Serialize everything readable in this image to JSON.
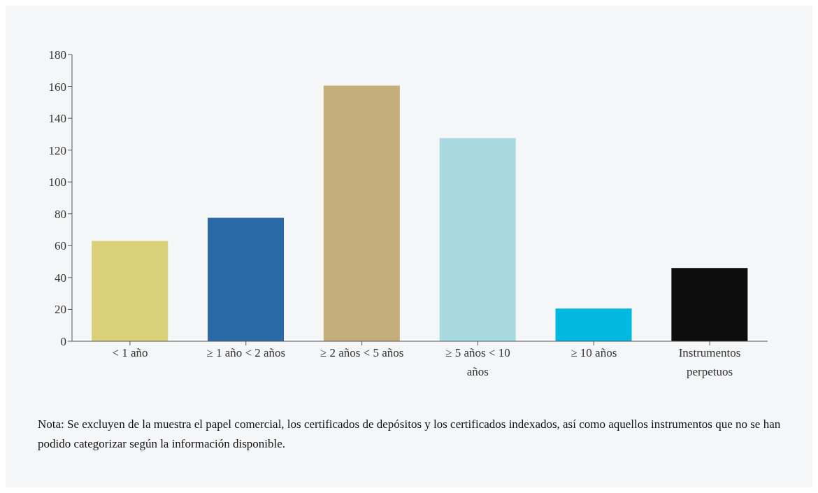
{
  "chart_data": {
    "type": "bar",
    "categories": [
      "< 1 año",
      "≥ 1 año < 2 años",
      "≥ 2 años < 5 años",
      "≥ 5 años < 10 años",
      "≥ 10 años",
      "Instrumentos perpetuos"
    ],
    "values": [
      63,
      77.5,
      160.5,
      127.5,
      20.5,
      46
    ],
    "colors": [
      "#dbd07a",
      "#2a6aa6",
      "#c4ae7a",
      "#a8d8e0",
      "#00b8e0",
      "#0d0d0d"
    ],
    "ylim": [
      0,
      180
    ],
    "yticks": [
      0,
      20,
      40,
      60,
      80,
      100,
      120,
      140,
      160,
      180
    ],
    "grid": false,
    "legend": false,
    "annotations": [
      "Nota: Se excluyen de la muestra el papel comercial, los certificados de depósitos y los certificados indexados, así como aquellos instrumentos que no se han podido categorizar según la información disponible."
    ]
  }
}
